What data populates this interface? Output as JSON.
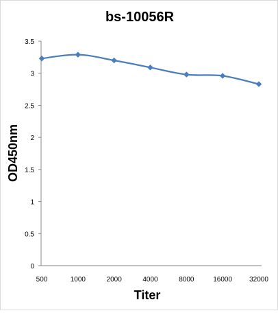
{
  "chart_data": {
    "type": "line",
    "title": "bs-10056R",
    "xlabel": "Titer",
    "ylabel": "OD450nm",
    "categories": [
      "500",
      "1000",
      "2000",
      "4000",
      "8000",
      "16000",
      "32000"
    ],
    "yticks": [
      "0",
      "0.5",
      "1",
      "1.5",
      "2",
      "2.5",
      "3",
      "3.5"
    ],
    "ylim": [
      0,
      3.5
    ],
    "grid": false,
    "legend": "none",
    "series": [
      {
        "values": [
          3.23,
          3.29,
          3.2,
          3.09,
          2.98,
          2.96,
          2.83
        ],
        "color": "#4a7ebb",
        "marker": "diamond",
        "smooth": true
      }
    ]
  }
}
